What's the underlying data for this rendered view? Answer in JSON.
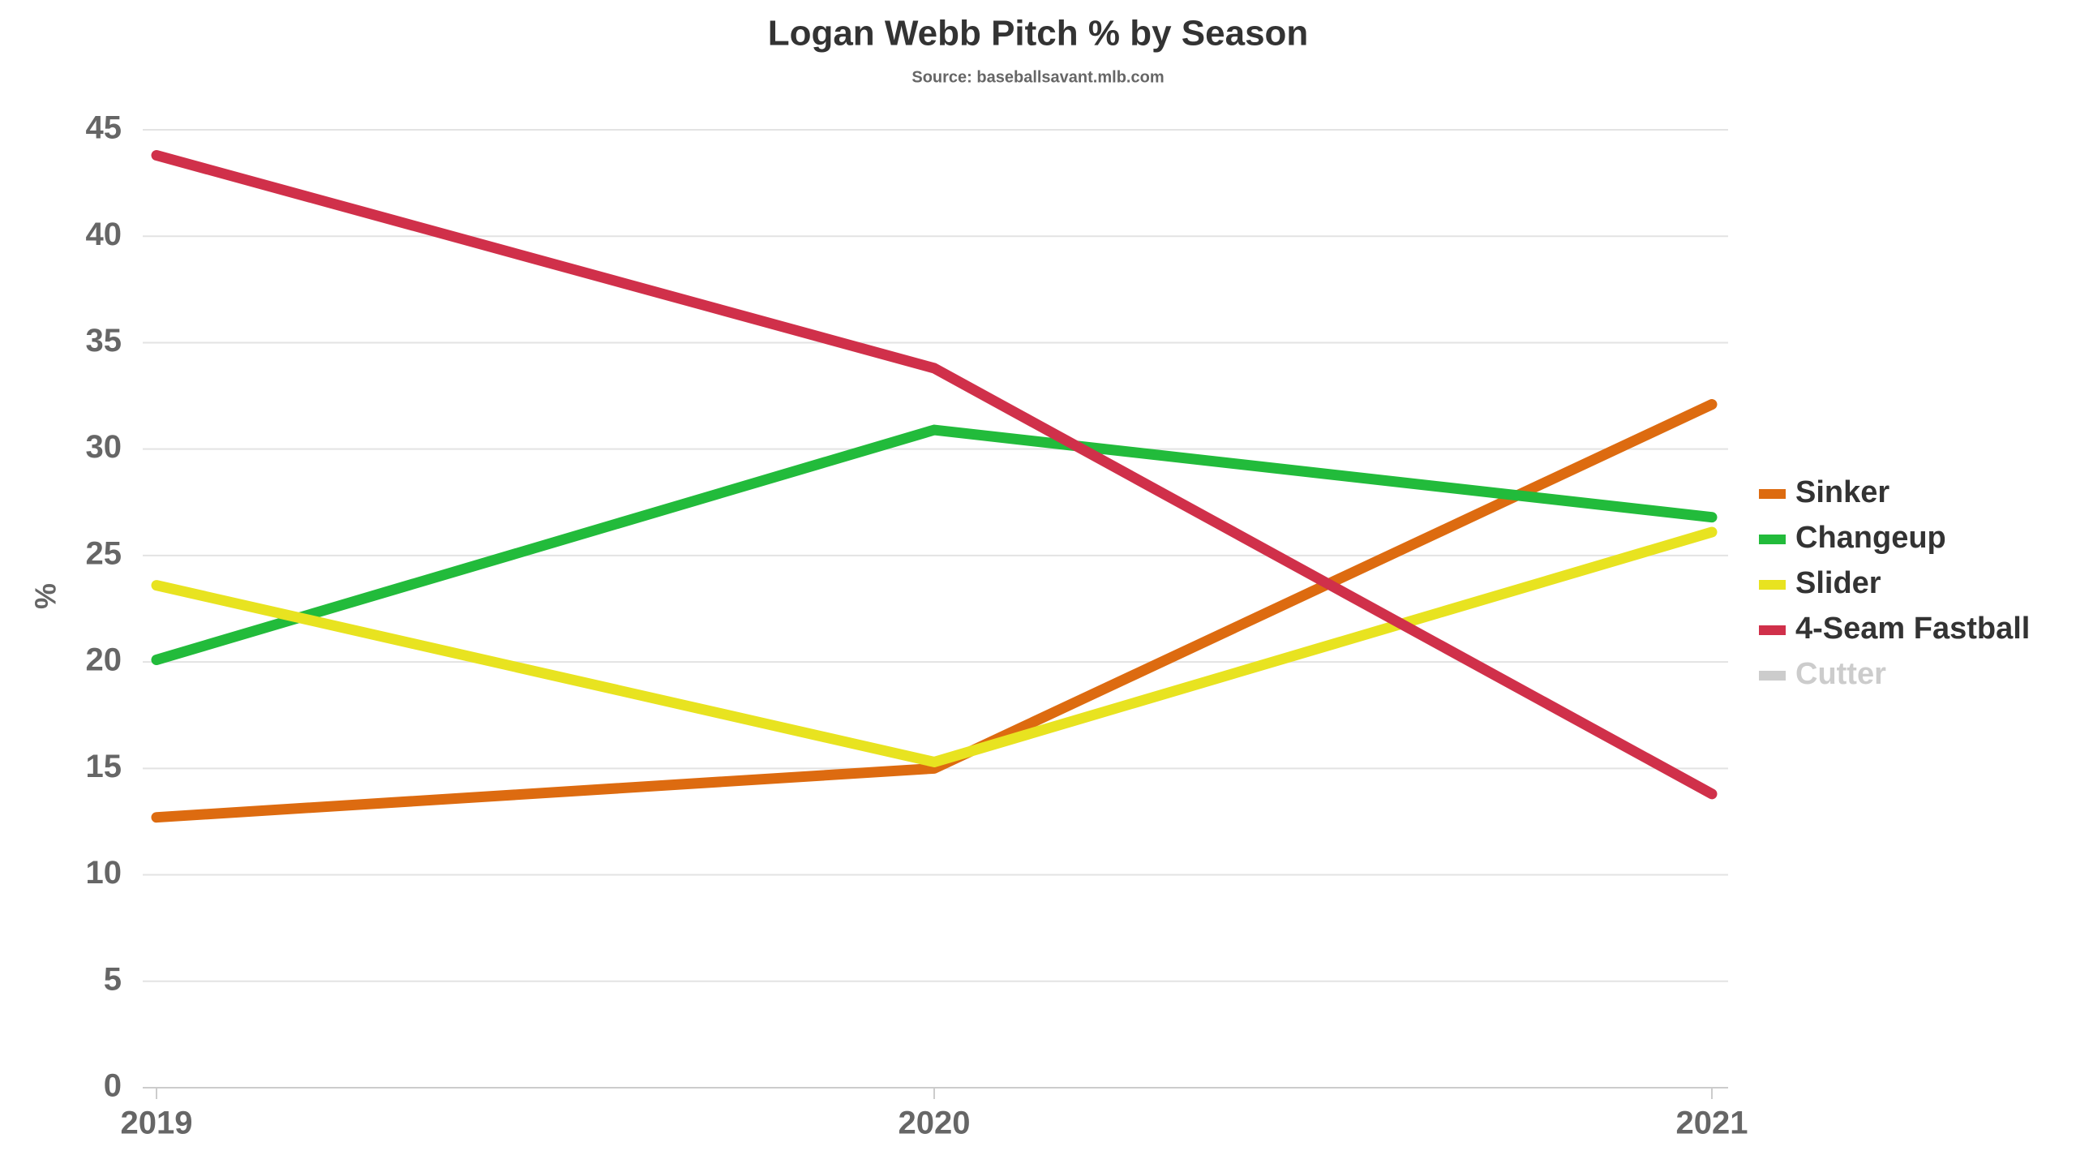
{
  "chart_data": {
    "type": "line",
    "title": "Logan Webb Pitch % by Season",
    "subtitle": "Source: baseballsavant.mlb.com",
    "y_label": "%",
    "categories": [
      "2019",
      "2020",
      "2021"
    ],
    "series": [
      {
        "name": "Sinker",
        "color": "#dd6b10",
        "values": [
          12.7,
          15.0,
          32.1
        ]
      },
      {
        "name": "Changeup",
        "color": "#22bb3b",
        "values": [
          20.1,
          30.9,
          26.8
        ]
      },
      {
        "name": "Slider",
        "color": "#e8e320",
        "values": [
          23.6,
          15.3,
          26.1
        ]
      },
      {
        "name": "4-Seam Fastball",
        "color": "#d0304a",
        "values": [
          43.8,
          33.8,
          13.8
        ]
      },
      {
        "name": "Cutter",
        "color": "#cccccc",
        "visible": false,
        "values": [
          null,
          null,
          null
        ]
      }
    ],
    "ylim": [
      0,
      45
    ],
    "yticks": [
      0,
      5,
      10,
      15,
      20,
      25,
      30,
      35,
      40,
      45
    ],
    "grid": true,
    "legend": "right"
  }
}
